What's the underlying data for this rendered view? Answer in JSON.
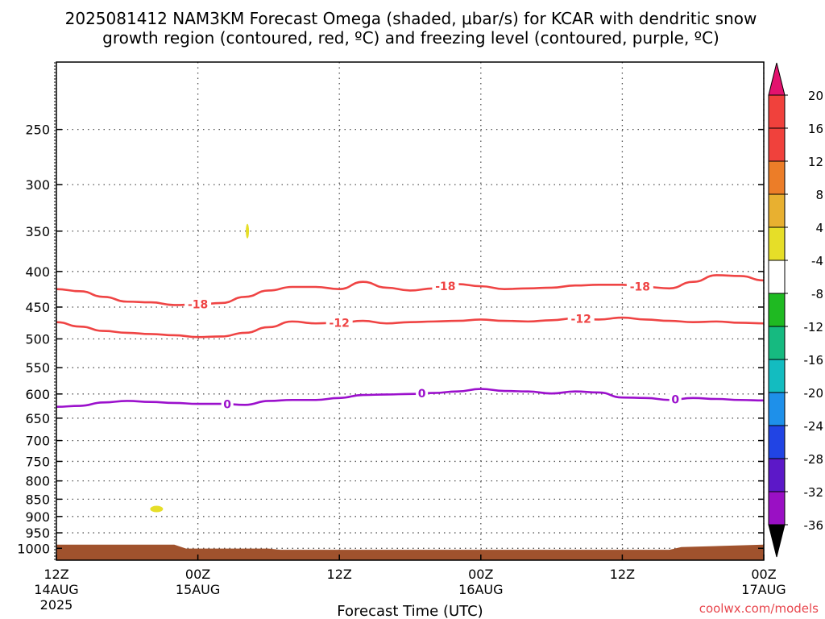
{
  "chart_data": {
    "type": "heatmap",
    "title_line1": "2025081412 NAM3KM Forecast Omega (shaded, μbar/s) for KCAR with dendritic snow",
    "title_line2": "growth region (contoured, red, ºC) and freezing level (contoured, purple, ºC)",
    "xlabel": "Forecast Time (UTC)",
    "ylabel": "",
    "y_scale": "log",
    "y_reversed": true,
    "ylim": [
      1040,
      200
    ],
    "y_ticks": [
      250,
      300,
      350,
      400,
      450,
      500,
      550,
      600,
      650,
      700,
      750,
      800,
      850,
      900,
      950,
      1000
    ],
    "xlim": [
      0,
      60
    ],
    "x_unit": "forecast hours from 2025-08-14 12Z",
    "x_ticks": [
      {
        "x": 0,
        "label": "12Z",
        "date": "14AUG",
        "year": "2025"
      },
      {
        "x": 12,
        "label": "00Z",
        "date": "15AUG",
        "year": ""
      },
      {
        "x": 24,
        "label": "12Z",
        "date": "",
        "year": ""
      },
      {
        "x": 36,
        "label": "00Z",
        "date": "16AUG",
        "year": ""
      },
      {
        "x": 48,
        "label": "12Z",
        "date": "",
        "year": ""
      },
      {
        "x": 60,
        "label": "00Z",
        "date": "17AUG",
        "year": ""
      }
    ],
    "grid": true,
    "colorbar": {
      "labels": [
        "20",
        "16",
        "12",
        "8",
        "4",
        "-4",
        "-8",
        "-12",
        "-16",
        "-20",
        "-24",
        "-28",
        "-32",
        "-36"
      ],
      "colors": [
        "#f0413c",
        "#f0413c",
        "#ec7d28",
        "#e8b030",
        "#e6de28",
        "#ffffff",
        "#1fba22",
        "#16ba80",
        "#13bcc0",
        "#1e90ea",
        "#2144e4",
        "#5c18c8",
        "#9a10c4",
        "#a0a0a0"
      ],
      "top_color": "#e3126e",
      "bottom_color": "#000000"
    },
    "shaded_omega": [
      {
        "x": 16.2,
        "y": 350,
        "value": 5,
        "color": "#e6de28"
      },
      {
        "x": 8.5,
        "y": 878,
        "value": 5,
        "color": "#e6de28"
      }
    ],
    "terrain": {
      "color": "#a0522d",
      "x": [
        0,
        10,
        11,
        18,
        19,
        52,
        53,
        60
      ],
      "p": [
        988,
        988,
        1001,
        1001,
        1005,
        1005,
        996,
        988
      ]
    },
    "contours": [
      {
        "level": -18,
        "label": "-18",
        "color": "#ef4444",
        "x": [
          0,
          2,
          4,
          6,
          8,
          10,
          12,
          14,
          16,
          18,
          20,
          22,
          24,
          26,
          28,
          30,
          32,
          34,
          36,
          38,
          40,
          42,
          44,
          46,
          48,
          50,
          52,
          54,
          56,
          58,
          60
        ],
        "p": [
          424,
          427,
          435,
          442,
          443,
          447,
          446,
          444,
          435,
          426,
          421,
          421,
          424,
          414,
          422,
          426,
          423,
          417,
          420,
          424,
          423,
          422,
          419,
          418,
          418,
          421,
          423,
          414,
          405,
          406,
          412
        ],
        "labels_at": [
          12,
          33,
          49.5
        ]
      },
      {
        "level": -12,
        "label": "-12",
        "color": "#ef4444",
        "x": [
          0,
          2,
          4,
          6,
          8,
          10,
          12,
          14,
          16,
          18,
          20,
          22,
          24,
          26,
          28,
          30,
          32,
          34,
          36,
          38,
          40,
          42,
          44,
          46,
          48,
          50,
          52,
          54,
          56,
          58,
          60
        ],
        "p": [
          473,
          480,
          487,
          490,
          492,
          494,
          497,
          496,
          490,
          481,
          472,
          475,
          474,
          471,
          475,
          473,
          472,
          471,
          469,
          471,
          472,
          470,
          467,
          469,
          466,
          469,
          471,
          473,
          472,
          474,
          475
        ],
        "labels_at": [
          24,
          44.5
        ]
      },
      {
        "level": 0,
        "label": "0",
        "color": "#9b10cc",
        "x": [
          0,
          2,
          4,
          6,
          8,
          10,
          12,
          14,
          16,
          18,
          20,
          22,
          24,
          26,
          28,
          30,
          32,
          34,
          36,
          38,
          40,
          42,
          44,
          46,
          48,
          50,
          52,
          54,
          56,
          58,
          60
        ],
        "p": [
          626,
          624,
          617,
          614,
          616,
          618,
          620,
          620,
          622,
          614,
          612,
          612,
          608,
          602,
          601,
          600,
          598,
          595,
          590,
          594,
          595,
          599,
          595,
          597,
          607,
          608,
          612,
          608,
          610,
          612,
          613
        ],
        "labels_at": [
          14.5,
          31,
          52.5
        ]
      }
    ],
    "watermark": "coolwx.com/models"
  }
}
